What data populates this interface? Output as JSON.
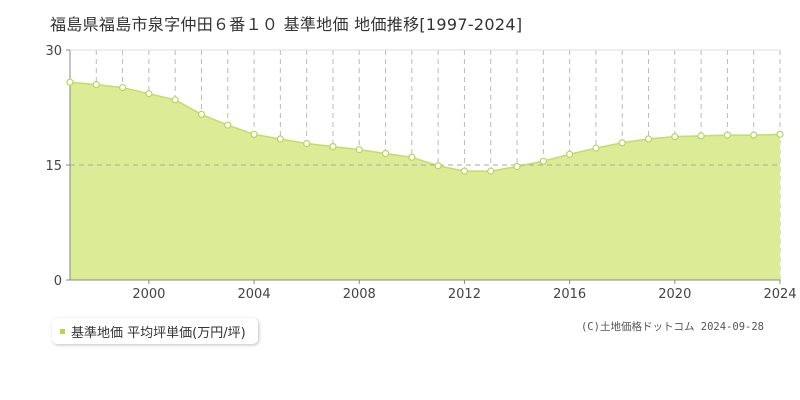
{
  "chart_data": {
    "type": "area",
    "title": "福島県福島市泉字仲田６番１０ 基準地価 地価推移[1997-2024]",
    "x": [
      1997,
      1998,
      1999,
      2000,
      2001,
      2002,
      2003,
      2004,
      2005,
      2006,
      2007,
      2008,
      2009,
      2010,
      2011,
      2012,
      2013,
      2014,
      2015,
      2016,
      2017,
      2018,
      2019,
      2020,
      2021,
      2022,
      2023,
      2024
    ],
    "series": [
      {
        "name": "基準地価 平均坪単価(万円/坪)",
        "values": [
          25.8,
          25.5,
          25.1,
          24.3,
          23.5,
          21.6,
          20.2,
          19.0,
          18.4,
          17.8,
          17.4,
          17.0,
          16.5,
          16.0,
          14.9,
          14.2,
          14.2,
          14.8,
          15.5,
          16.4,
          17.2,
          17.9,
          18.4,
          18.7,
          18.8,
          18.9,
          18.9,
          19.0
        ]
      }
    ],
    "xlabel": "",
    "ylabel": "",
    "xlim": [
      1997,
      2024
    ],
    "ylim": [
      0,
      30
    ],
    "x_ticks": [
      2000,
      2004,
      2008,
      2012,
      2016,
      2020,
      2024
    ],
    "y_ticks": [
      0,
      15,
      30
    ],
    "grid": true,
    "legend_position": "bottom-left",
    "colors": {
      "area_fill": "#dbeb96",
      "line": "#c2dd6a",
      "marker_fill": "#ffffff",
      "marker_stroke": "#b8d65c",
      "legend_marker": "#b5d94a"
    }
  },
  "copyright": "(C)土地価格ドットコム 2024-09-28"
}
